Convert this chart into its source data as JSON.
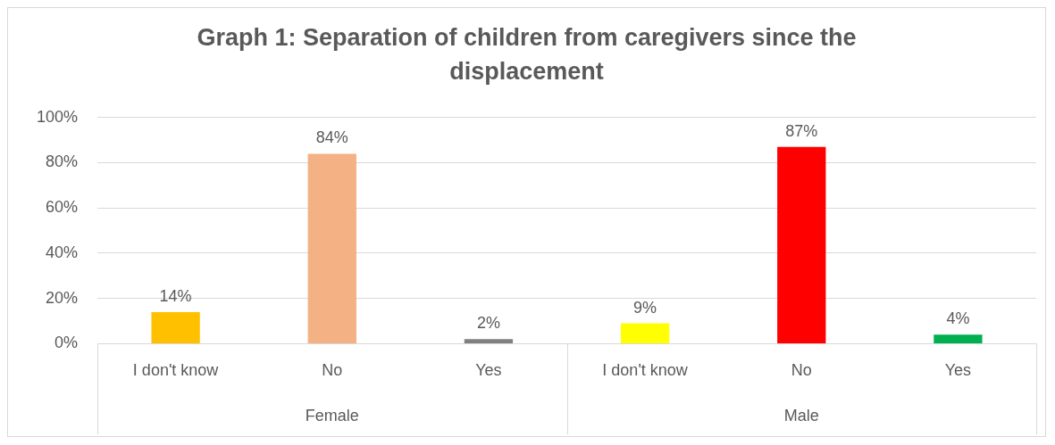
{
  "chart_data": {
    "type": "bar",
    "title": "Graph 1: Separation of children from caregivers since the displacement",
    "categories": [
      "I don't know",
      "No",
      "Yes",
      "I don't know",
      "No",
      "Yes"
    ],
    "values": [
      14,
      84,
      2,
      9,
      87,
      4
    ],
    "colors": [
      "#ffc000",
      "#f4b183",
      "#808080",
      "#ffff00",
      "#ff0000",
      "#00b050"
    ],
    "value_labels": [
      "14%",
      "84%",
      "2%",
      "9%",
      "87%",
      "4%"
    ],
    "annotations": [
      "Female",
      "Male"
    ],
    "ylim": [
      0,
      100
    ],
    "yticks": [
      {
        "value": 0,
        "label": "0%"
      },
      {
        "value": 20,
        "label": "20%"
      },
      {
        "value": 40,
        "label": "40%"
      },
      {
        "value": 60,
        "label": "60%"
      },
      {
        "value": 80,
        "label": "80%"
      },
      {
        "value": 100,
        "label": "100%"
      }
    ],
    "grid": "y",
    "legend": false
  }
}
